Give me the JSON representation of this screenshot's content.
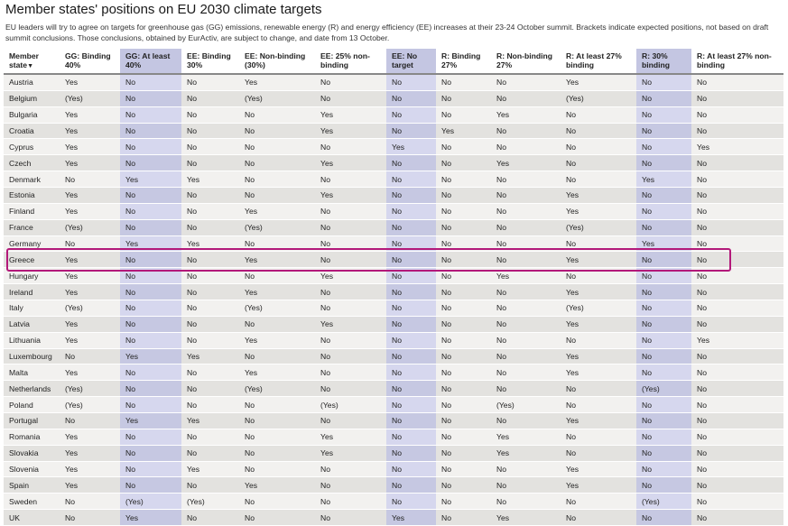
{
  "title": "Member states' positions on EU 2030 climate targets",
  "intro": "EU leaders will try to agree on targets for greenhouse gas (GG) emissions, renewable energy (R) and energy efficiency (EE) increases at their 23-24 October summit. Brackets indicate expected positions, not based on draft summit conclusions. Those conclusions, obtained by EurActiv, are subject to change, and date from 13 October.",
  "columns": [
    {
      "label": "Member state",
      "sort": "▼",
      "shaded": false
    },
    {
      "label": "GG: Binding 40%",
      "shaded": false
    },
    {
      "label": "GG: At least 40%",
      "shaded": true
    },
    {
      "label": "EE: Binding 30%",
      "shaded": false
    },
    {
      "label": "EE: Non-binding (30%)",
      "shaded": false
    },
    {
      "label": "EE: 25% non-binding",
      "shaded": false
    },
    {
      "label": "EE: No target",
      "shaded": true
    },
    {
      "label": "R: Binding 27%",
      "shaded": false
    },
    {
      "label": "R: Non-binding 27%",
      "shaded": false
    },
    {
      "label": "R: At least 27% binding",
      "shaded": false
    },
    {
      "label": "R: 30% binding",
      "shaded": true
    },
    {
      "label": "R: At least 27% non-binding",
      "shaded": false
    }
  ],
  "rows": [
    [
      "Austria",
      "Yes",
      "No",
      "No",
      "Yes",
      "No",
      "No",
      "No",
      "No",
      "Yes",
      "No",
      "No"
    ],
    [
      "Belgium",
      "(Yes)",
      "No",
      "No",
      "(Yes)",
      "No",
      "No",
      "No",
      "No",
      "(Yes)",
      "No",
      "No"
    ],
    [
      "Bulgaria",
      "Yes",
      "No",
      "No",
      "No",
      "Yes",
      "No",
      "No",
      "Yes",
      "No",
      "No",
      "No"
    ],
    [
      "Croatia",
      "Yes",
      "No",
      "No",
      "No",
      "Yes",
      "No",
      "Yes",
      "No",
      "No",
      "No",
      "No"
    ],
    [
      "Cyprus",
      "Yes",
      "No",
      "No",
      "No",
      "No",
      "Yes",
      "No",
      "No",
      "No",
      "No",
      "Yes"
    ],
    [
      "Czech",
      "Yes",
      "No",
      "No",
      "No",
      "Yes",
      "No",
      "No",
      "Yes",
      "No",
      "No",
      "No"
    ],
    [
      "Denmark",
      "No",
      "Yes",
      "Yes",
      "No",
      "No",
      "No",
      "No",
      "No",
      "No",
      "Yes",
      "No"
    ],
    [
      "Estonia",
      "Yes",
      "No",
      "No",
      "No",
      "Yes",
      "No",
      "No",
      "No",
      "Yes",
      "No",
      "No"
    ],
    [
      "Finland",
      "Yes",
      "No",
      "No",
      "Yes",
      "No",
      "No",
      "No",
      "No",
      "Yes",
      "No",
      "No"
    ],
    [
      "France",
      "(Yes)",
      "No",
      "No",
      "(Yes)",
      "No",
      "No",
      "No",
      "No",
      "(Yes)",
      "No",
      "No"
    ],
    [
      "Germany",
      "No",
      "Yes",
      "Yes",
      "No",
      "No",
      "No",
      "No",
      "No",
      "No",
      "Yes",
      "No"
    ],
    [
      "Greece",
      "Yes",
      "No",
      "No",
      "Yes",
      "No",
      "No",
      "No",
      "No",
      "Yes",
      "No",
      "No"
    ],
    [
      "Hungary",
      "Yes",
      "No",
      "No",
      "No",
      "Yes",
      "No",
      "No",
      "Yes",
      "No",
      "No",
      "No"
    ],
    [
      "Ireland",
      "Yes",
      "No",
      "No",
      "Yes",
      "No",
      "No",
      "No",
      "No",
      "Yes",
      "No",
      "No"
    ],
    [
      "Italy",
      "(Yes)",
      "No",
      "No",
      "(Yes)",
      "No",
      "No",
      "No",
      "No",
      "(Yes)",
      "No",
      "No"
    ],
    [
      "Latvia",
      "Yes",
      "No",
      "No",
      "No",
      "Yes",
      "No",
      "No",
      "No",
      "Yes",
      "No",
      "No"
    ],
    [
      "Lithuania",
      "Yes",
      "No",
      "No",
      "Yes",
      "No",
      "No",
      "No",
      "No",
      "No",
      "No",
      "Yes"
    ],
    [
      "Luxembourg",
      "No",
      "Yes",
      "Yes",
      "No",
      "No",
      "No",
      "No",
      "No",
      "Yes",
      "No",
      "No"
    ],
    [
      "Malta",
      "Yes",
      "No",
      "No",
      "Yes",
      "No",
      "No",
      "No",
      "No",
      "Yes",
      "No",
      "No"
    ],
    [
      "Netherlands",
      "(Yes)",
      "No",
      "No",
      "(Yes)",
      "No",
      "No",
      "No",
      "No",
      "No",
      "(Yes)",
      "No"
    ],
    [
      "Poland",
      "(Yes)",
      "No",
      "No",
      "No",
      "(Yes)",
      "No",
      "No",
      "(Yes)",
      "No",
      "No",
      "No"
    ],
    [
      "Portugal",
      "No",
      "Yes",
      "Yes",
      "No",
      "No",
      "No",
      "No",
      "No",
      "Yes",
      "No",
      "No"
    ],
    [
      "Romania",
      "Yes",
      "No",
      "No",
      "No",
      "Yes",
      "No",
      "No",
      "Yes",
      "No",
      "No",
      "No"
    ],
    [
      "Slovakia",
      "Yes",
      "No",
      "No",
      "No",
      "Yes",
      "No",
      "No",
      "Yes",
      "No",
      "No",
      "No"
    ],
    [
      "Slovenia",
      "Yes",
      "No",
      "Yes",
      "No",
      "No",
      "No",
      "No",
      "No",
      "Yes",
      "No",
      "No"
    ],
    [
      "Spain",
      "Yes",
      "No",
      "No",
      "Yes",
      "No",
      "No",
      "No",
      "No",
      "Yes",
      "No",
      "No"
    ],
    [
      "Sweden",
      "No",
      "(Yes)",
      "(Yes)",
      "No",
      "No",
      "No",
      "No",
      "No",
      "No",
      "(Yes)",
      "No"
    ],
    [
      "UK",
      "No",
      "Yes",
      "No",
      "No",
      "No",
      "Yes",
      "No",
      "Yes",
      "No",
      "No",
      "No"
    ]
  ],
  "highlight": {
    "row": "Greece",
    "color": "#b3197a"
  },
  "colors": {
    "shaded_header": "#c4c6e2",
    "shaded_cell_odd": "#d6d7ee",
    "shaded_cell_even": "#c6c8e2",
    "row_odd": "#f2f1ef",
    "row_even": "#e3e2df"
  }
}
